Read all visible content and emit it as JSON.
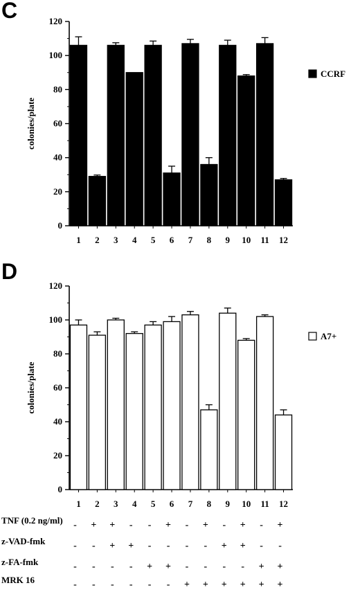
{
  "chart_data": [
    {
      "type": "bar",
      "panel": "C",
      "categories": [
        "1",
        "2",
        "3",
        "4",
        "5",
        "6",
        "7",
        "8",
        "9",
        "10",
        "11",
        "12"
      ],
      "series": [
        {
          "name": "CCRF",
          "color": "#000000",
          "values": [
            106,
            29,
            106,
            90,
            106,
            31,
            107,
            36,
            106,
            88,
            107,
            27
          ],
          "errors": [
            5,
            0.8,
            1.5,
            0,
            2.5,
            4,
            2.5,
            4,
            3,
            0.8,
            3.5,
            0.8
          ]
        }
      ],
      "ylabel": "colonies/plate",
      "ylim": [
        0,
        120
      ],
      "yticks": [
        0,
        20,
        40,
        60,
        80,
        100,
        120
      ],
      "legend_position": "right"
    },
    {
      "type": "bar",
      "panel": "D",
      "categories": [
        "1",
        "2",
        "3",
        "4",
        "5",
        "6",
        "7",
        "8",
        "9",
        "10",
        "11",
        "12"
      ],
      "series": [
        {
          "name": "A7+",
          "color": "#ffffff",
          "values": [
            97,
            91,
            100,
            92,
            97,
            99,
            103,
            47,
            104,
            88,
            102,
            44
          ],
          "errors": [
            3,
            2,
            1,
            1,
            2,
            3,
            2,
            3,
            3,
            1,
            1,
            3
          ]
        }
      ],
      "ylabel": "colonies/plate",
      "ylim": [
        0,
        120
      ],
      "yticks": [
        0,
        20,
        40,
        60,
        80,
        100,
        120
      ],
      "legend_position": "right"
    }
  ],
  "treatments": [
    {
      "label": "TNF (0.2 ng/ml)",
      "signs": [
        "-",
        "+",
        "+",
        "-",
        "-",
        "+",
        "-",
        "+",
        "-",
        "+",
        "-",
        "+"
      ]
    },
    {
      "label": "z-VAD-fmk",
      "signs": [
        "-",
        "-",
        "+",
        "+",
        "-",
        "-",
        "-",
        "-",
        "+",
        "+",
        "-",
        "-"
      ]
    },
    {
      "label": "z-FA-fmk",
      "signs": [
        "-",
        "-",
        "-",
        "-",
        "+",
        "+",
        "-",
        "-",
        "-",
        "-",
        "+",
        "+"
      ]
    },
    {
      "label": "MRK 16",
      "signs": [
        "-",
        "-",
        "-",
        "-",
        "-",
        "-",
        "+",
        "+",
        "+",
        "+",
        "+",
        "+"
      ]
    }
  ]
}
